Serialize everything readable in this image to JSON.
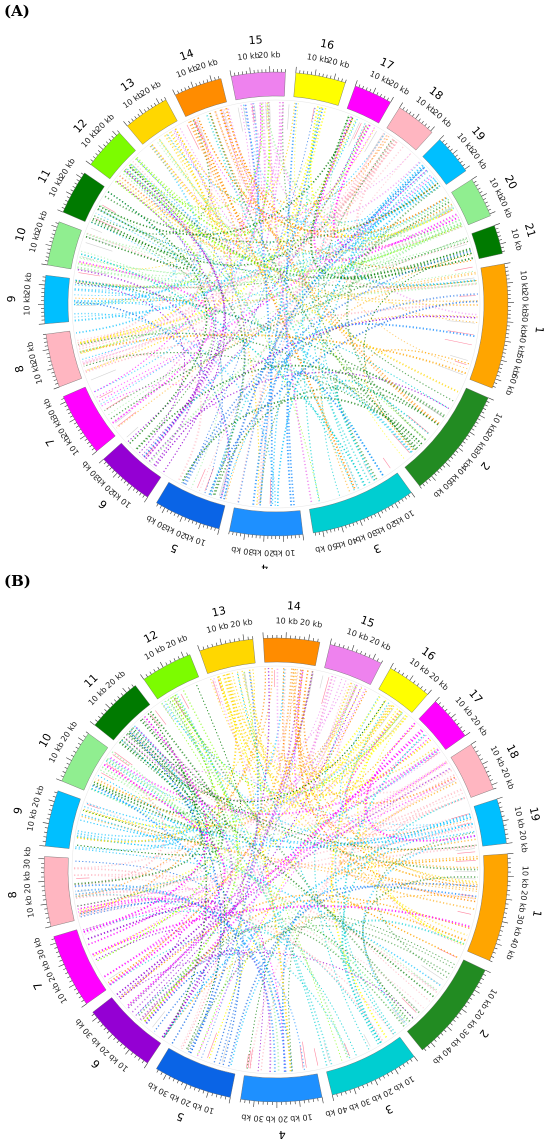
{
  "panels": [
    {
      "label": "(A)",
      "chromosomes": [
        {
          "name": "1",
          "length_kb": 65,
          "color": "#ffa500"
        },
        {
          "name": "2",
          "length_kb": 58,
          "color": "#228b22"
        },
        {
          "name": "3",
          "length_kb": 55,
          "color": "#00ced1"
        },
        {
          "name": "4",
          "length_kb": 38,
          "color": "#1e90ff"
        },
        {
          "name": "5",
          "length_kb": 35,
          "color": "#0a64e6"
        },
        {
          "name": "6",
          "length_kb": 30,
          "color": "#9400d3"
        },
        {
          "name": "7",
          "length_kb": 33,
          "color": "#ff00ff"
        },
        {
          "name": "8",
          "length_kb": 28,
          "color": "#ffb6c1"
        },
        {
          "name": "9",
          "length_kb": 25,
          "color": "#00bfff"
        },
        {
          "name": "10",
          "length_kb": 23,
          "color": "#90ee90"
        },
        {
          "name": "11",
          "length_kb": 23,
          "color": "#007a00"
        },
        {
          "name": "12",
          "length_kb": 22,
          "color": "#7cfc00"
        },
        {
          "name": "13",
          "length_kb": 24,
          "color": "#ffd700"
        },
        {
          "name": "14",
          "length_kb": 25,
          "color": "#ff8c00"
        },
        {
          "name": "15",
          "length_kb": 28,
          "color": "#ee82ee"
        },
        {
          "name": "16",
          "length_kb": 26,
          "color": "#ffff00"
        },
        {
          "name": "17",
          "length_kb": 20,
          "color": "#ff00ff"
        },
        {
          "name": "18",
          "length_kb": 21,
          "color": "#ffb6c1"
        },
        {
          "name": "19",
          "length_kb": 21,
          "color": "#00bfff"
        },
        {
          "name": "20",
          "length_kb": 21,
          "color": "#90ee90"
        },
        {
          "name": "21",
          "length_kb": 15,
          "color": "#007a00"
        }
      ]
    },
    {
      "label": "(B)",
      "chromosomes": [
        {
          "name": "1",
          "length_kb": 48,
          "color": "#ffa500"
        },
        {
          "name": "2",
          "length_kb": 45,
          "color": "#228b22"
        },
        {
          "name": "3",
          "length_kb": 40,
          "color": "#00ced1"
        },
        {
          "name": "4",
          "length_kb": 36,
          "color": "#1e90ff"
        },
        {
          "name": "5",
          "length_kb": 35,
          "color": "#0a64e6"
        },
        {
          "name": "6",
          "length_kb": 33,
          "color": "#9400d3"
        },
        {
          "name": "7",
          "length_kb": 33,
          "color": "#ff00ff"
        },
        {
          "name": "8",
          "length_kb": 31,
          "color": "#ffb6c1"
        },
        {
          "name": "9",
          "length_kb": 25,
          "color": "#00bfff"
        },
        {
          "name": "10",
          "length_kb": 24,
          "color": "#90ee90"
        },
        {
          "name": "11",
          "length_kb": 25,
          "color": "#007a00"
        },
        {
          "name": "12",
          "length_kb": 23,
          "color": "#7cfc00"
        },
        {
          "name": "13",
          "length_kb": 24,
          "color": "#ffd700"
        },
        {
          "name": "14",
          "length_kb": 25,
          "color": "#ff8c00"
        },
        {
          "name": "15",
          "length_kb": 24,
          "color": "#ee82ee"
        },
        {
          "name": "16",
          "length_kb": 20,
          "color": "#ffff00"
        },
        {
          "name": "17",
          "length_kb": 20,
          "color": "#ff00ff"
        },
        {
          "name": "18",
          "length_kb": 22,
          "color": "#ffb6c1"
        },
        {
          "name": "19",
          "length_kb": 20,
          "color": "#00bfff"
        }
      ]
    }
  ],
  "tick_label_suffix": "kb",
  "tick_step_kb": 10
}
